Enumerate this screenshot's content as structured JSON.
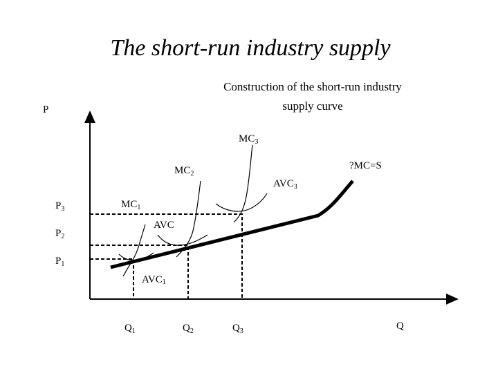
{
  "title": "The short-run industry supply",
  "subtitle": [
    "Construction of the short-run industry",
    "supply curve"
  ],
  "labels": {
    "p_axis": {
      "main": "P"
    },
    "q_axis": {
      "main": "Q"
    },
    "mc1": {
      "main": "MC",
      "sub": "1"
    },
    "mc2": {
      "main": "MC",
      "sub": "2"
    },
    "mc3": {
      "main": "MC",
      "sub": "3"
    },
    "supply": {
      "main": "?MC=S"
    },
    "avc": {
      "main": "AVC"
    },
    "avc1": {
      "main": "AVC",
      "sub": "1"
    },
    "avc3": {
      "main": "AVC",
      "sub": "3"
    },
    "p1": {
      "main": "P",
      "sub": "1"
    },
    "p2": {
      "main": "P",
      "sub": "2"
    },
    "p3": {
      "main": "P",
      "sub": "3"
    },
    "q1": {
      "main": "Q",
      "sub": "1"
    },
    "q2": {
      "main": "Q",
      "sub": "2"
    },
    "q3": {
      "main": "Q",
      "sub": "3"
    }
  }
}
